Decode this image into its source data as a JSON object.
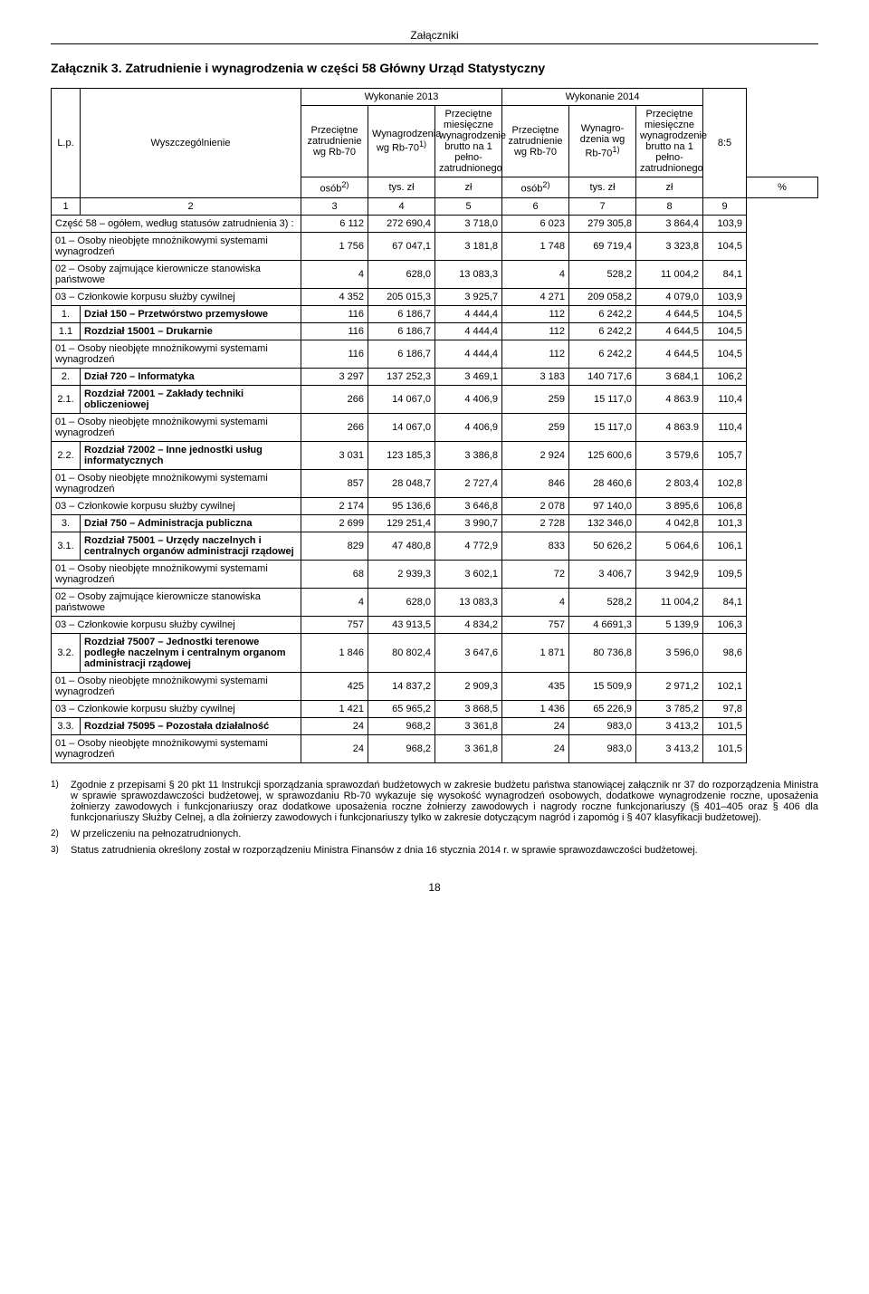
{
  "running_head": "Załączniki",
  "title": "Załącznik 3. Zatrudnienie i wynagrodzenia w części 58 Główny Urząd Statystyczny",
  "page_number": "18",
  "header": {
    "lp": "L.p.",
    "wysz": "Wyszczególnienie",
    "wyk2013": "Wykonanie 2013",
    "wyk2014": "Wykonanie 2014",
    "ratio": "8:5",
    "h_zatr": "Przeciętne zatrudnienie wg Rb-70",
    "h_wynag": "Wynagrodzenia wg Rb-70",
    "h_wynag_sup": "1)",
    "h_brutto": "Przeciętne miesięczne wynagrodzenie brutto na 1 pełno­zatrudnionego",
    "h_wynag2": "Wynagro­dzenia wg Rb-70",
    "u_osob": "osób",
    "u_osob_sup": "2)",
    "u_tyszl": "tys. zł",
    "u_zl": "zł",
    "u_pct": "%",
    "n": [
      "1",
      "2",
      "3",
      "4",
      "5",
      "6",
      "7",
      "8",
      "9"
    ]
  },
  "rows": [
    {
      "lp": "",
      "name": "Część 58 – ogółem, według statusów zatrudnienia 3) :",
      "v": [
        "6 112",
        "272 690,4",
        "3 718,0",
        "6 023",
        "279 305,8",
        "3 864,4",
        "103,9"
      ]
    },
    {
      "lp": "",
      "name": "01 – Osoby nieobjęte mnożnikowymi systemami wynagrodzeń",
      "v": [
        "1 756",
        "67 047,1",
        "3 181,8",
        "1 748",
        "69 719,4",
        "3 323,8",
        "104,5"
      ]
    },
    {
      "lp": "",
      "name": "02 – Osoby zajmujące kierownicze stanowiska państwowe",
      "v": [
        "4",
        "628,0",
        "13 083,3",
        "4",
        "528,2",
        "11 004,2",
        "84,1"
      ]
    },
    {
      "lp": "",
      "name": "03 – Członkowie korpusu służby cywilnej",
      "v": [
        "4 352",
        "205 015,3",
        "3 925,7",
        "4 271",
        "209 058,2",
        "4 079,0",
        "103,9"
      ]
    },
    {
      "lp": "1.",
      "name": "Dział 150 – Przetwórstwo przemysłowe",
      "bold": true,
      "v": [
        "116",
        "6 186,7",
        "4 444,4",
        "112",
        "6 242,2",
        "4 644,5",
        "104,5"
      ]
    },
    {
      "lp": "1.1",
      "name": "Rozdział 15001 – Drukarnie",
      "bold": true,
      "v": [
        "116",
        "6 186,7",
        "4 444,4",
        "112",
        "6 242,2",
        "4 644,5",
        "104,5"
      ]
    },
    {
      "lp": "",
      "name": "01 – Osoby nieobjęte mnożnikowymi systemami wynagrodzeń",
      "v": [
        "116",
        "6 186,7",
        "4 444,4",
        "112",
        "6 242,2",
        "4 644,5",
        "104,5"
      ]
    },
    {
      "lp": "2.",
      "name": "Dział 720 – Informatyka",
      "bold": true,
      "v": [
        "3 297",
        "137 252,3",
        "3 469,1",
        "3 183",
        "140 717,6",
        "3 684,1",
        "106,2"
      ]
    },
    {
      "lp": "2.1.",
      "name": "Rozdział 72001 – Zakłady techniki obliczeniowej",
      "bold": true,
      "v": [
        "266",
        "14 067,0",
        "4 406,9",
        "259",
        "15 117,0",
        "4 863.9",
        "110,4"
      ]
    },
    {
      "lp": "",
      "name": "01 – Osoby nieobjęte mnożnikowymi systemami wynagrodzeń",
      "v": [
        "266",
        "14 067,0",
        "4 406,9",
        "259",
        "15 117,0",
        "4 863.9",
        "110,4"
      ]
    },
    {
      "lp": "2.2.",
      "name": "Rozdział 72002 – Inne jednostki usług informatycznych",
      "bold": true,
      "v": [
        "3 031",
        "123 185,3",
        "3 386,8",
        "2 924",
        "125 600,6",
        "3 579,6",
        "105,7"
      ]
    },
    {
      "lp": "",
      "name": "01 – Osoby nieobjęte mnożnikowymi systemami wynagrodzeń",
      "v": [
        "857",
        "28 048,7",
        "2 727,4",
        "846",
        "28 460,6",
        "2 803,4",
        "102,8"
      ]
    },
    {
      "lp": "",
      "name": "03 – Członkowie korpusu służby cywilnej",
      "v": [
        "2 174",
        "95 136,6",
        "3 646,8",
        "2 078",
        "97 140,0",
        "3 895,6",
        "106,8"
      ]
    },
    {
      "lp": "3.",
      "name": "Dział 750 – Administracja publiczna",
      "bold": true,
      "v": [
        "2 699",
        "129 251,4",
        "3 990,7",
        "2 728",
        "132 346,0",
        "4 042,8",
        "101,3"
      ]
    },
    {
      "lp": "3.1.",
      "name": "Rozdział 75001 – Urzędy naczelnych i centralnych organów administracji rządowej",
      "bold": true,
      "v": [
        "829",
        "47 480,8",
        "4 772,9",
        "833",
        "50 626,2",
        "5 064,6",
        "106,1"
      ]
    },
    {
      "lp": "",
      "name": "01 – Osoby nieobjęte mnożnikowymi systemami wynagrodzeń",
      "v": [
        "68",
        "2 939,3",
        "3 602,1",
        "72",
        "3 406,7",
        "3 942,9",
        "109,5"
      ]
    },
    {
      "lp": "",
      "name": "02 – Osoby zajmujące kierownicze stanowiska państwowe",
      "v": [
        "4",
        "628,0",
        "13 083,3",
        "4",
        "528,2",
        "11 004,2",
        "84,1"
      ]
    },
    {
      "lp": "",
      "name": "03 – Członkowie korpusu służby cywilnej",
      "v": [
        "757",
        "43 913,5",
        "4 834,2",
        "757",
        "4 6691,3",
        "5 139,9",
        "106,3"
      ]
    },
    {
      "lp": "3.2.",
      "name": "Rozdział 75007 – Jednostki terenowe podległe naczelnym i centralnym organom administracji rządowej",
      "bold": true,
      "v": [
        "1 846",
        "80 802,4",
        "3 647,6",
        "1 871",
        "80 736,8",
        "3 596,0",
        "98,6"
      ]
    },
    {
      "lp": "",
      "name": "01 – Osoby nieobjęte mnożnikowymi systemami wynagrodzeń",
      "v": [
        "425",
        "14 837,2",
        "2 909,3",
        "435",
        "15 509,9",
        "2 971,2",
        "102,1"
      ]
    },
    {
      "lp": "",
      "name": "03 – Członkowie korpusu służby cywilnej",
      "v": [
        "1 421",
        "65 965,2",
        "3 868,5",
        "1 436",
        "65 226,9",
        "3 785,2",
        "97,8"
      ]
    },
    {
      "lp": "3.3.",
      "name": "Rozdział 75095 – Pozostała działalność",
      "bold": true,
      "v": [
        "24",
        "968,2",
        "3 361,8",
        "24",
        "983,0",
        "3 413,2",
        "101,5"
      ]
    },
    {
      "lp": "",
      "name": "01 – Osoby nieobjęte mnożnikowymi systemami wynagrodzeń",
      "v": [
        "24",
        "968,2",
        "3 361,8",
        "24",
        "983,0",
        "3 413,2",
        "101,5"
      ]
    }
  ],
  "footnotes": [
    {
      "mark": "1)",
      "text": "Zgodnie z przepisami § 20 pkt 11 Instrukcji sporządzania sprawozdań budżetowych w zakresie budżetu państwa stanowiącej załącznik nr 37 do  rozporządzenia Ministra w sprawie sprawozdawczości budżetowej, w sprawozdaniu Rb-70 wykazuje się wysokość wynagrodzeń osobowych, dodatkowe wynagrodzenie roczne, uposażenia żołnierzy zawodowych i funkcjonariuszy oraz dodatkowe uposażenia roczne żołnierzy zawodowych i nagrody roczne funkcjonariuszy (§ 401–405 oraz § 406 dla funkcjonariuszy Służby Celnej, a dla żołnierzy zawodowych i funkcjonariuszy tylko w zakresie dotyczącym nagród i zapomóg i § 407 klasyfikacji budżetowej)."
    },
    {
      "mark": "2)",
      "text": "W przeliczeniu na pełnozatrudnionych."
    },
    {
      "mark": "3)",
      "text": "Status zatrudnienia określony został w rozporządzeniu Ministra Finansów z dnia 16 stycznia 2014 r. w sprawie sprawozdawczości budżetowej."
    }
  ]
}
